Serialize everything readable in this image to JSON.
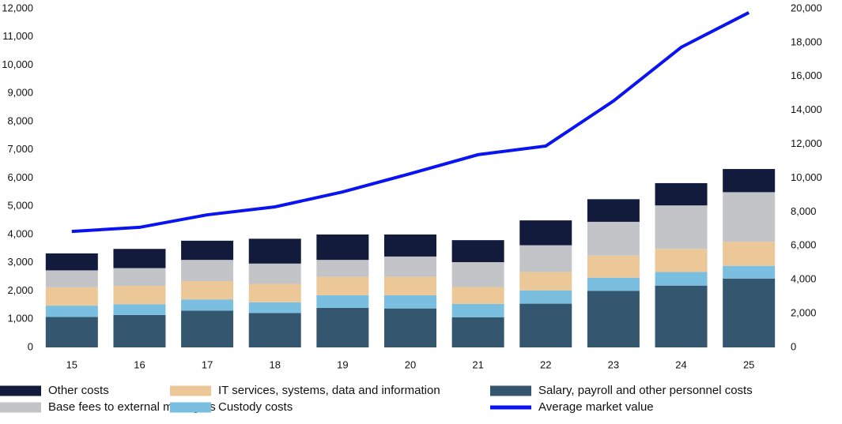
{
  "chart_data": {
    "type": "stacked-bar-line",
    "categories": [
      "15",
      "16",
      "17",
      "18",
      "19",
      "20",
      "21",
      "22",
      "23",
      "24",
      "25"
    ],
    "series": [
      {
        "name": "Salary, payroll and other personnel costs",
        "color": "#35566f",
        "values": [
          1080,
          1150,
          1300,
          1220,
          1400,
          1380,
          1070,
          1550,
          2000,
          2190,
          2440
        ]
      },
      {
        "name": "Custody costs",
        "color": "#7bbfe0",
        "values": [
          400,
          380,
          400,
          380,
          450,
          470,
          470,
          470,
          470,
          480,
          450
        ]
      },
      {
        "name": "IT services, systems, data and information",
        "color": "#ecc898",
        "values": [
          650,
          650,
          650,
          650,
          650,
          650,
          600,
          650,
          780,
          820,
          850
        ]
      },
      {
        "name": "Base fees to external managers",
        "color": "#c3c4c8",
        "values": [
          600,
          630,
          750,
          720,
          600,
          720,
          880,
          950,
          1200,
          1540,
          1760
        ]
      },
      {
        "name": "Other costs",
        "color": "#131b3c",
        "values": [
          600,
          680,
          680,
          880,
          900,
          780,
          780,
          880,
          800,
          790,
          820
        ]
      },
      {
        "name": "Average market value",
        "color": "#0a14f0",
        "axis": "y2",
        "type": "line",
        "values": [
          6850,
          7090,
          7830,
          8300,
          9180,
          10260,
          11380,
          11890,
          14550,
          17720,
          19770
        ]
      }
    ],
    "ylim": [
      0,
      12000
    ],
    "yticks": [
      0,
      {
        "value": 1000,
        "label": "1,000"
      },
      {
        "value": 2000,
        "label": "2,000"
      },
      {
        "value": 3000,
        "label": "3,000"
      },
      {
        "value": 4000,
        "label": "4,000"
      },
      {
        "value": 5000,
        "label": "5,000"
      },
      {
        "value": 6000,
        "label": "6,000"
      },
      {
        "value": 7000,
        "label": "7,000"
      },
      {
        "value": 8000,
        "label": "8,000"
      },
      {
        "value": 9000,
        "label": "9,000"
      },
      {
        "value": 10000,
        "label": "10,000"
      },
      {
        "value": 11000,
        "label": "11,000"
      },
      {
        "value": 12000,
        "label": "12,000"
      }
    ],
    "y2lim": [
      0,
      20000
    ],
    "y2ticks": [
      0,
      {
        "value": 2000,
        "label": "2,000"
      },
      {
        "value": 4000,
        "label": "4,000"
      },
      {
        "value": 6000,
        "label": "6,000"
      },
      {
        "value": 8000,
        "label": "8,000"
      },
      {
        "value": 10000,
        "label": "10,000"
      },
      {
        "value": 12000,
        "label": "12,000"
      },
      {
        "value": 14000,
        "label": "14,000"
      },
      {
        "value": 16000,
        "label": "16,000"
      },
      {
        "value": 18000,
        "label": "18,000"
      },
      {
        "value": 20000,
        "label": "20,000"
      }
    ],
    "legend_order": [
      4,
      2,
      0,
      3,
      1,
      5
    ]
  }
}
